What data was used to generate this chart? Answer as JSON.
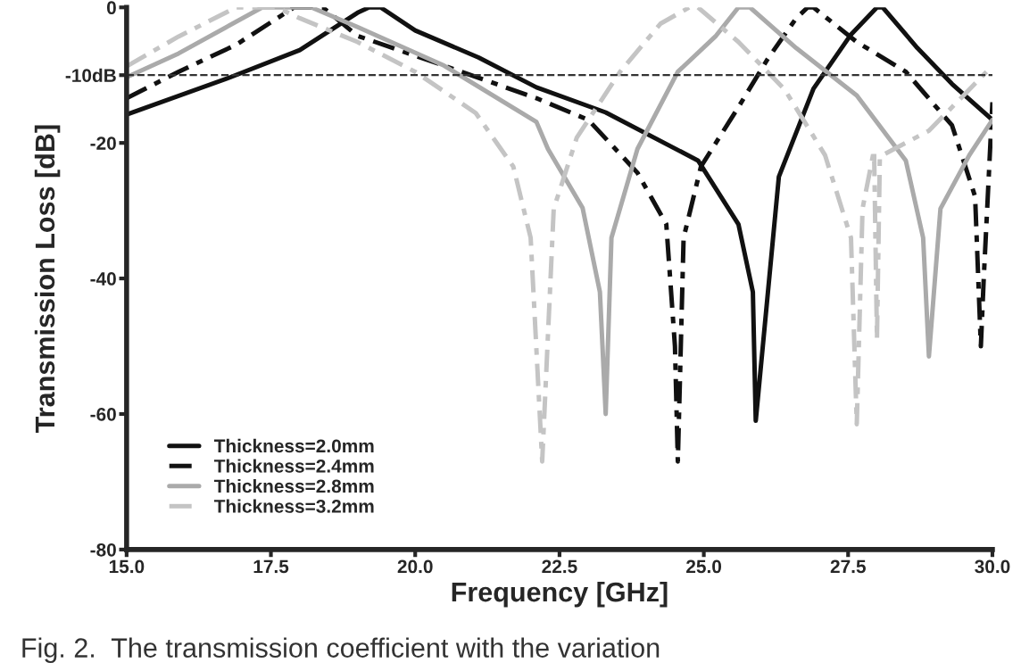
{
  "chart_data": {
    "type": "line",
    "xlabel": "Frequency [GHz]",
    "ylabel": "Transmission Loss [dB]",
    "xlim": [
      15,
      30
    ],
    "xticks": [
      {
        "value": 15,
        "label": "15.0"
      },
      {
        "value": 17.5,
        "label": "17.5"
      },
      {
        "value": 20,
        "label": "20.0"
      },
      {
        "value": 22.5,
        "label": "22.5"
      },
      {
        "value": 25,
        "label": "25.0"
      },
      {
        "value": 27.5,
        "label": "27.5"
      },
      {
        "value": 30,
        "label": "30.0"
      }
    ],
    "ylim": [
      -80,
      0
    ],
    "yticks": [
      0,
      {
        "value": -10,
        "label": "-10dB"
      },
      -20,
      -40,
      -60,
      -80
    ],
    "grid": false,
    "legend": "bottom left",
    "marker": "none",
    "ref_lines": [
      {
        "axis": "y",
        "value": -10,
        "color": "#333333",
        "line_style": "dashed"
      }
    ],
    "series": [
      {
        "name": "Thickness=2.0mm",
        "color": "#111111",
        "line_style": "solid",
        "x": [
          15,
          16.8,
          18,
          19,
          19.2,
          19.4,
          20,
          21.1,
          22.1,
          23.3,
          24.9,
          25.6,
          25.85,
          25.9,
          26.3,
          26.9,
          27.55,
          28,
          28.1,
          28.7,
          29.3,
          30
        ],
        "values": [
          -15.8,
          -10.3,
          -6.3,
          -0.8,
          0,
          0,
          -3.4,
          -7.4,
          -11.8,
          -15.5,
          -22.6,
          -32,
          -42,
          -61,
          -25,
          -12,
          -4,
          0,
          0,
          -6,
          -11.3,
          -16.6
        ]
      },
      {
        "name": "Thickness=2.4mm",
        "color": "#111111",
        "line_style": "dashed",
        "x": [
          15,
          15.9,
          16.9,
          17.9,
          18.4,
          19,
          20.5,
          22.1,
          23,
          23.85,
          24.35,
          24.5,
          24.55,
          24.65,
          24.95,
          25.6,
          26.1,
          26.6,
          26.8,
          26.9,
          27.65,
          28.5,
          29.3,
          29.7,
          29.8,
          29.85,
          30
        ],
        "values": [
          -13.4,
          -9.5,
          -5.5,
          0,
          0,
          -4.2,
          -8.6,
          -13.4,
          -16.6,
          -24.4,
          -32,
          -50,
          -67,
          -34,
          -23.5,
          -14.7,
          -7.7,
          -1.6,
          0,
          0,
          -5.1,
          -9.5,
          -17.4,
          -27.9,
          -50,
          -40,
          -14
        ]
      },
      {
        "name": "Thickness=2.8mm",
        "color": "#aaaaaa",
        "line_style": "solid",
        "x": [
          15,
          15.9,
          17.35,
          18.2,
          19,
          20.5,
          22.1,
          22.3,
          22.9,
          23.2,
          23.3,
          23.4,
          23.85,
          24.55,
          25.2,
          25.6,
          25.8,
          26.6,
          27.65,
          28.5,
          28.8,
          28.9,
          29.1,
          29.6,
          30
        ],
        "values": [
          -10.3,
          -6.8,
          0,
          0,
          -2.9,
          -8.6,
          -16.9,
          -20.9,
          -29.6,
          -42,
          -60,
          -34,
          -20.9,
          -9.5,
          -4.3,
          0,
          0,
          -6,
          -13,
          -22.6,
          -34,
          -51.5,
          -29.7,
          -21.8,
          -16.6
        ]
      },
      {
        "name": "Thickness=3.2mm",
        "color": "#c4c4c4",
        "line_style": "dashed",
        "x": [
          15,
          15.9,
          16.9,
          17.6,
          18,
          19,
          20,
          21.05,
          21.7,
          22,
          22.2,
          22.4,
          22.8,
          23.55,
          24.25,
          24.75,
          24.9,
          25.6,
          26.4,
          27.1,
          27.55,
          27.65,
          27.75,
          27.95,
          28,
          28.05,
          28.9,
          29.5,
          30
        ],
        "values": [
          -8.7,
          -4.3,
          0,
          0,
          -1.6,
          -5.1,
          -9.5,
          -15.6,
          -23.5,
          -34,
          -67,
          -29.7,
          -19.2,
          -9.5,
          -2.4,
          0,
          0,
          -5.1,
          -12.1,
          -21.8,
          -34,
          -61.5,
          -29.7,
          -21,
          -49,
          -22,
          -18.2,
          -13,
          -8.6
        ]
      }
    ],
    "annotations": [
      "Fig. 2.  The transmission coefficient with the variation"
    ]
  }
}
